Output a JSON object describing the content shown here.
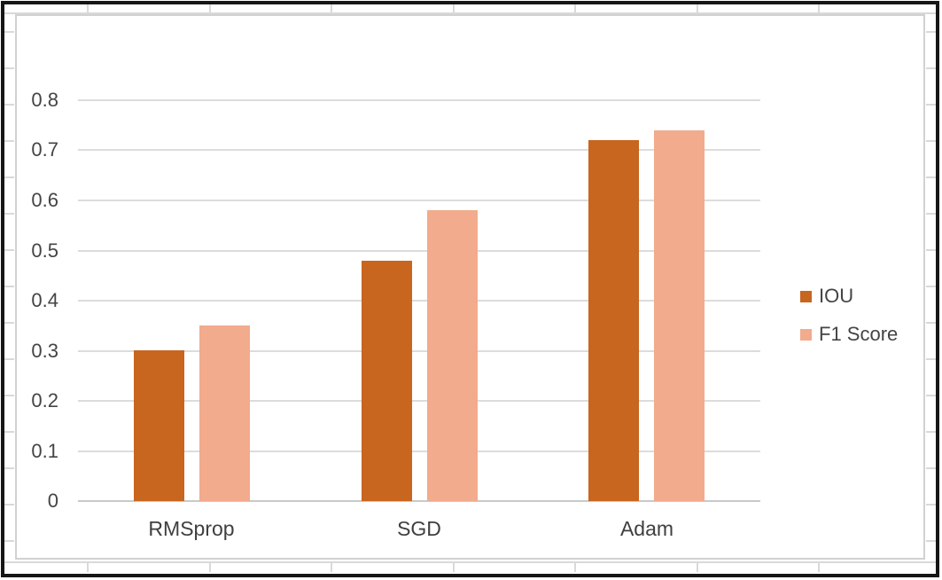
{
  "chart_data": {
    "type": "bar",
    "title": "",
    "xlabel": "",
    "ylabel": "",
    "categories": [
      "RMSprop",
      "SGD",
      "Adam"
    ],
    "series": [
      {
        "name": "IOU",
        "color": "#C8651F",
        "values": [
          0.3,
          0.48,
          0.72
        ]
      },
      {
        "name": "F1 Score",
        "color": "#F2AB8C",
        "values": [
          0.35,
          0.58,
          0.74
        ]
      }
    ],
    "ylim": [
      0,
      0.8
    ],
    "ytick_step": 0.1,
    "yticks": [
      "0",
      "0.1",
      "0.2",
      "0.3",
      "0.4",
      "0.5",
      "0.6",
      "0.7",
      "0.8"
    ],
    "grid": "horizontal",
    "legend_position": "right-middle"
  },
  "chart_style": {
    "background": "#ffffff",
    "gridline_color": "#dcdcdc",
    "axis_line_color": "#c9c9c9",
    "text_color": "#444444",
    "chart_frame_color": "#d2d0d0",
    "screenshot_border_color": "#161616",
    "sheet_gridline_color": "#d9d9d9"
  }
}
